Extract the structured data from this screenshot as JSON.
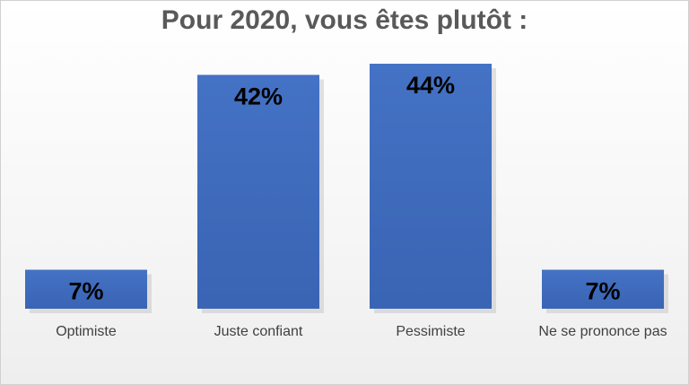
{
  "chart_data": {
    "type": "bar",
    "title": "Pour 2020, vous êtes plutôt :",
    "categories": [
      "Optimiste",
      "Juste confiant",
      "Pessimiste",
      "Ne se prononce pas"
    ],
    "values": [
      7,
      42,
      44,
      7
    ],
    "data_labels": [
      "7%",
      "42%",
      "44%",
      "7%"
    ],
    "value_unit": "%",
    "ylim": [
      0,
      49
    ],
    "grid": false,
    "legend": "none",
    "colors": {
      "bar": "#4472c4",
      "bar_dark": "#3a64b4",
      "shadow": "#c9c9c9",
      "title": "#595959",
      "category_text": "#404040"
    }
  }
}
